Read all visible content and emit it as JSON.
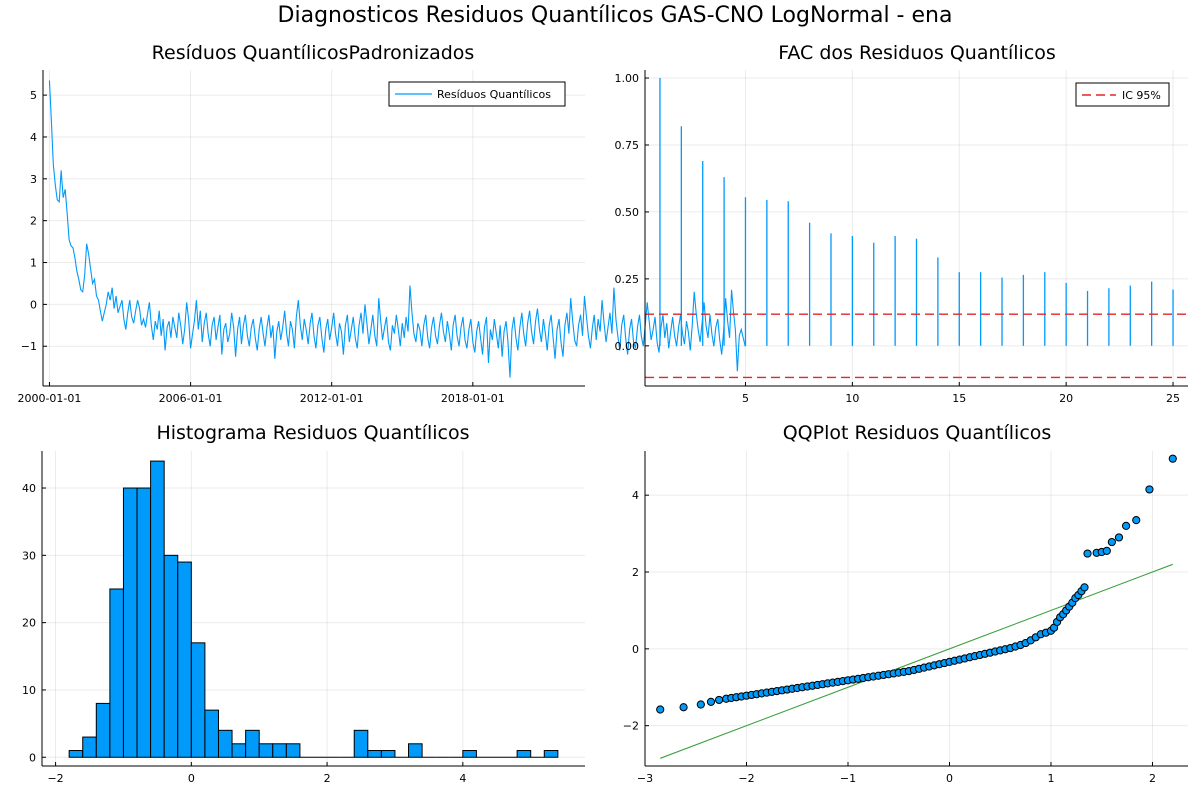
{
  "suptitle": "Diagnosticos Residuos  Quantílicos GAS-CNO LogNormal - ena",
  "colors": {
    "series": "#009AFA",
    "ci": "#E52626",
    "refline": "#3DA240",
    "bar_edge": "#000000"
  },
  "chart_data": [
    {
      "type": "line",
      "title": "Resíduos  QuantílicosPadronizados",
      "legend": "top-right",
      "x_ticks": [
        "2000-01-01",
        "2006-01-01",
        "2012-01-01",
        "2018-01-01"
      ],
      "x_range": [
        "2000-01-01",
        "2022-07-01"
      ],
      "y_ticks": [
        -1,
        0,
        1,
        2,
        3,
        4,
        5
      ],
      "ylim": [
        -1.95,
        5.6
      ],
      "series": [
        {
          "name": "Resíduos Quantílicos",
          "start": "2000-01-01",
          "frequency": "monthly",
          "values": [
            5.35,
            4.35,
            3.35,
            2.85,
            2.5,
            2.45,
            3.2,
            2.55,
            2.75,
            2.2,
            1.55,
            1.4,
            1.35,
            1.1,
            0.8,
            0.6,
            0.35,
            0.3,
            0.7,
            1.45,
            1.2,
            0.85,
            0.5,
            0.6,
            0.2,
            0.1,
            -0.15,
            -0.4,
            -0.2,
            0.0,
            0.3,
            0.1,
            0.4,
            -0.1,
            0.2,
            -0.2,
            -0.05,
            0.1,
            -0.35,
            -0.6,
            -0.2,
            0.1,
            -0.3,
            -0.45,
            -0.15,
            0.1,
            -0.1,
            -0.5,
            -0.35,
            -0.55,
            -0.25,
            0.05,
            -0.5,
            -0.85,
            -0.4,
            -0.6,
            -0.15,
            -0.75,
            -0.35,
            -1.1,
            -0.55,
            -0.4,
            -0.8,
            -0.3,
            -0.55,
            -0.8,
            -0.2,
            -0.5,
            -0.95,
            -0.6,
            0.05,
            -0.35,
            -1.05,
            -0.7,
            -0.4,
            0.1,
            -0.6,
            -0.15,
            -0.9,
            -0.45,
            -0.2,
            -0.7,
            -1.0,
            -0.5,
            -0.3,
            -0.85,
            -0.55,
            -0.25,
            -1.2,
            -0.6,
            -0.45,
            -0.9,
            -0.7,
            -0.2,
            -0.55,
            -1.25,
            -0.6,
            -0.3,
            -0.95,
            -0.5,
            -0.25,
            -0.75,
            -1.0,
            -0.55,
            -0.35,
            -0.8,
            -1.1,
            -0.6,
            -0.3,
            -0.7,
            -1.0,
            -0.55,
            -0.25,
            -0.8,
            -0.5,
            -1.3,
            -0.65,
            -0.4,
            -0.85,
            -0.55,
            -0.15,
            -0.7,
            -1.0,
            -0.4,
            -0.6,
            -1.05,
            -0.3,
            0.1,
            -0.5,
            -0.85,
            -0.35,
            -0.6,
            -0.95,
            -0.45,
            -0.2,
            -0.75,
            -1.05,
            -0.5,
            -0.3,
            -0.8,
            -1.15,
            -0.6,
            -0.35,
            -0.85,
            -0.55,
            -0.2,
            -0.7,
            -1.0,
            -0.45,
            -0.65,
            -1.2,
            -0.5,
            -0.25,
            -0.9,
            -0.6,
            -0.3,
            -0.8,
            -1.05,
            -0.5,
            -0.2,
            -0.7,
            0.0,
            -0.45,
            -0.95,
            -0.6,
            -0.25,
            -0.75,
            -1.0,
            0.15,
            -0.4,
            -0.85,
            -0.55,
            -0.3,
            -0.9,
            -1.1,
            -0.5,
            -0.7,
            -0.25,
            -0.6,
            -1.0,
            -0.45,
            -0.8,
            -0.3,
            -0.65,
            0.45,
            -0.2,
            -0.7,
            -0.9,
            -0.45,
            -0.6,
            -1.0,
            -0.5,
            -0.25,
            -0.8,
            -1.05,
            -0.55,
            -0.3,
            -0.75,
            -0.95,
            -0.5,
            -0.2,
            -0.65,
            -0.9,
            -0.4,
            -0.7,
            -1.1,
            -0.5,
            -0.25,
            -0.75,
            -1.0,
            -0.55,
            -0.3,
            -0.85,
            -1.05,
            -0.6,
            -0.35,
            -0.9,
            -1.15,
            -0.65,
            -0.4,
            -0.8,
            -1.2,
            -0.55,
            -0.3,
            -1.4,
            -0.6,
            -0.85,
            -0.35,
            -0.7,
            -1.05,
            -0.5,
            -1.25,
            -0.65,
            -0.4,
            -0.9,
            -1.75,
            -0.6,
            -0.3,
            -0.8,
            -1.1,
            -0.55,
            -0.2,
            -0.7,
            -1.0,
            -0.45,
            -0.15,
            -0.65,
            -0.95,
            -0.4,
            -0.1,
            -0.6,
            -0.9,
            -0.35,
            -0.7,
            -1.1,
            -0.5,
            -0.25,
            -0.8,
            -1.3,
            -0.6,
            -0.35,
            -0.9,
            -1.25,
            -0.5,
            -0.2,
            -0.7,
            0.15,
            -0.4,
            -0.85,
            -1.0,
            -0.5,
            -0.25,
            -0.75,
            0.2,
            -0.3,
            -0.75,
            -1.05,
            -0.55,
            -0.25,
            -0.85,
            -0.35,
            -0.65,
            0.1,
            -0.45,
            -0.9,
            -0.55,
            -0.2,
            -0.7,
            0.4,
            -0.35,
            -0.75,
            -1.1,
            -0.5,
            -0.25,
            -0.8,
            -1.2,
            -0.6,
            -0.35,
            -0.9,
            -1.05,
            -0.55,
            -0.25,
            -0.75,
            -1.0,
            -0.5,
            0.05,
            -0.4,
            -0.85,
            -0.6,
            -0.3,
            -0.9,
            -1.15,
            -0.55,
            -0.25,
            -0.8,
            -0.45,
            -1.05,
            -0.65,
            -0.3,
            -0.75,
            -1.0,
            -0.55,
            -0.25,
            -0.7,
            -0.95,
            -0.4,
            -0.65,
            -1.1,
            -0.5,
            0.3,
            -0.2,
            -0.6,
            -0.9,
            -0.45,
            0.05,
            -0.5,
            -0.8,
            -0.25,
            -0.7,
            -1.0,
            -0.55,
            -0.35,
            -0.85,
            -1.2,
            -0.6,
            0.15,
            -0.4,
            -0.8,
            0.35,
            -0.2,
            -0.6,
            -1.6,
            -0.75,
            -0.6,
            -0.8,
            -1.0
          ]
        }
      ]
    },
    {
      "type": "bar",
      "title": "FAC dos Residuos Quantílicos",
      "legend": "top-right",
      "x_ticks": [
        5,
        10,
        15,
        20,
        25
      ],
      "xlim": [
        0.3,
        25.7
      ],
      "y_ticks": [
        "0.00",
        "0.25",
        "0.50",
        "0.75",
        "1.00"
      ],
      "ylim": [
        -0.15,
        1.03
      ],
      "lags": [
        1,
        2,
        3,
        4,
        5,
        6,
        7,
        8,
        9,
        10,
        11,
        12,
        13,
        14,
        15,
        16,
        17,
        18,
        19,
        20,
        21,
        22,
        23,
        24,
        25
      ],
      "values": [
        1.0,
        0.82,
        0.69,
        0.63,
        0.555,
        0.545,
        0.54,
        0.46,
        0.42,
        0.41,
        0.385,
        0.41,
        0.4,
        0.33,
        0.275,
        0.275,
        0.255,
        0.265,
        0.275,
        0.235,
        0.205,
        0.215,
        0.225,
        0.24,
        0.21
      ],
      "ci": {
        "name": "IC 95%",
        "upper": 0.118,
        "lower": -0.118
      }
    },
    {
      "type": "bar",
      "title": "Histograma Residuos Quantílicos",
      "x_ticks": [
        -2,
        0,
        2,
        4
      ],
      "xlim": [
        -2.2,
        5.8
      ],
      "y_ticks": [
        0,
        10,
        20,
        30,
        40
      ],
      "ylim": [
        -1.3,
        45.5
      ],
      "bin_edges": [
        -1.8,
        -1.6,
        -1.4,
        -1.2,
        -1.0,
        -0.8,
        -0.6,
        -0.4,
        -0.2,
        0.0,
        0.2,
        0.4,
        0.6,
        0.8,
        1.0,
        1.2,
        1.4,
        1.6,
        1.8,
        2.0,
        2.2,
        2.4,
        2.6,
        2.8,
        3.0,
        3.2,
        3.4,
        3.6,
        3.8,
        4.0,
        4.2,
        4.4,
        4.6,
        4.8,
        5.0,
        5.2,
        5.4
      ],
      "counts": [
        1,
        3,
        8,
        25,
        40,
        40,
        44,
        30,
        29,
        17,
        7,
        4,
        2,
        4,
        2,
        2,
        2,
        0,
        0,
        0,
        0,
        4,
        1,
        1,
        0,
        2,
        0,
        0,
        0,
        1,
        0,
        0,
        0,
        1,
        0,
        1
      ]
    },
    {
      "type": "scatter",
      "title": "QQPlot Residuos Quantílicos",
      "x_ticks": [
        -3,
        -2,
        -1,
        0,
        1,
        2
      ],
      "xlim": [
        -3.0,
        2.35
      ],
      "y_ticks": [
        -2,
        0,
        2,
        4
      ],
      "ylim": [
        -3.05,
        5.15
      ],
      "reference_line": {
        "x": [
          -2.85,
          2.2
        ],
        "y": [
          -2.85,
          2.2
        ]
      },
      "points": {
        "x": [
          -2.85,
          -2.62,
          -2.45,
          -2.35,
          -2.27,
          -2.2,
          -2.15,
          -2.1,
          -2.05,
          -2.0,
          -1.95,
          -1.9,
          -1.85,
          -1.8,
          -1.75,
          -1.7,
          -1.65,
          -1.6,
          -1.55,
          -1.5,
          -1.45,
          -1.4,
          -1.35,
          -1.3,
          -1.25,
          -1.2,
          -1.15,
          -1.1,
          -1.05,
          -1.0,
          -0.95,
          -0.9,
          -0.85,
          -0.8,
          -0.75,
          -0.7,
          -0.65,
          -0.6,
          -0.55,
          -0.5,
          -0.45,
          -0.4,
          -0.35,
          -0.3,
          -0.25,
          -0.2,
          -0.15,
          -0.1,
          -0.05,
          0.0,
          0.05,
          0.1,
          0.15,
          0.2,
          0.25,
          0.3,
          0.35,
          0.4,
          0.45,
          0.5,
          0.55,
          0.6,
          0.65,
          0.7,
          0.75,
          0.8,
          0.85,
          0.9,
          0.95,
          1.0,
          1.03,
          1.06,
          1.09,
          1.12,
          1.15,
          1.18,
          1.21,
          1.24,
          1.27,
          1.3,
          1.33,
          1.36,
          1.45,
          1.5,
          1.55,
          1.6,
          1.67,
          1.74,
          1.84,
          1.97,
          2.2
        ],
        "y": [
          -1.58,
          -1.52,
          -1.45,
          -1.38,
          -1.33,
          -1.3,
          -1.28,
          -1.26,
          -1.24,
          -1.22,
          -1.2,
          -1.18,
          -1.16,
          -1.14,
          -1.12,
          -1.1,
          -1.08,
          -1.06,
          -1.04,
          -1.02,
          -1.0,
          -0.98,
          -0.96,
          -0.94,
          -0.92,
          -0.9,
          -0.88,
          -0.86,
          -0.84,
          -0.82,
          -0.8,
          -0.78,
          -0.76,
          -0.74,
          -0.72,
          -0.7,
          -0.68,
          -0.66,
          -0.64,
          -0.62,
          -0.6,
          -0.58,
          -0.55,
          -0.52,
          -0.49,
          -0.46,
          -0.43,
          -0.4,
          -0.37,
          -0.34,
          -0.31,
          -0.28,
          -0.25,
          -0.22,
          -0.19,
          -0.16,
          -0.13,
          -0.1,
          -0.07,
          -0.04,
          -0.01,
          0.02,
          0.06,
          0.1,
          0.15,
          0.22,
          0.3,
          0.38,
          0.42,
          0.47,
          0.55,
          0.7,
          0.82,
          0.9,
          1.0,
          1.1,
          1.2,
          1.32,
          1.4,
          1.5,
          1.6,
          2.48,
          2.5,
          2.52,
          2.55,
          2.78,
          2.9,
          3.2,
          3.35,
          4.15,
          4.95
        ]
      }
    }
  ]
}
